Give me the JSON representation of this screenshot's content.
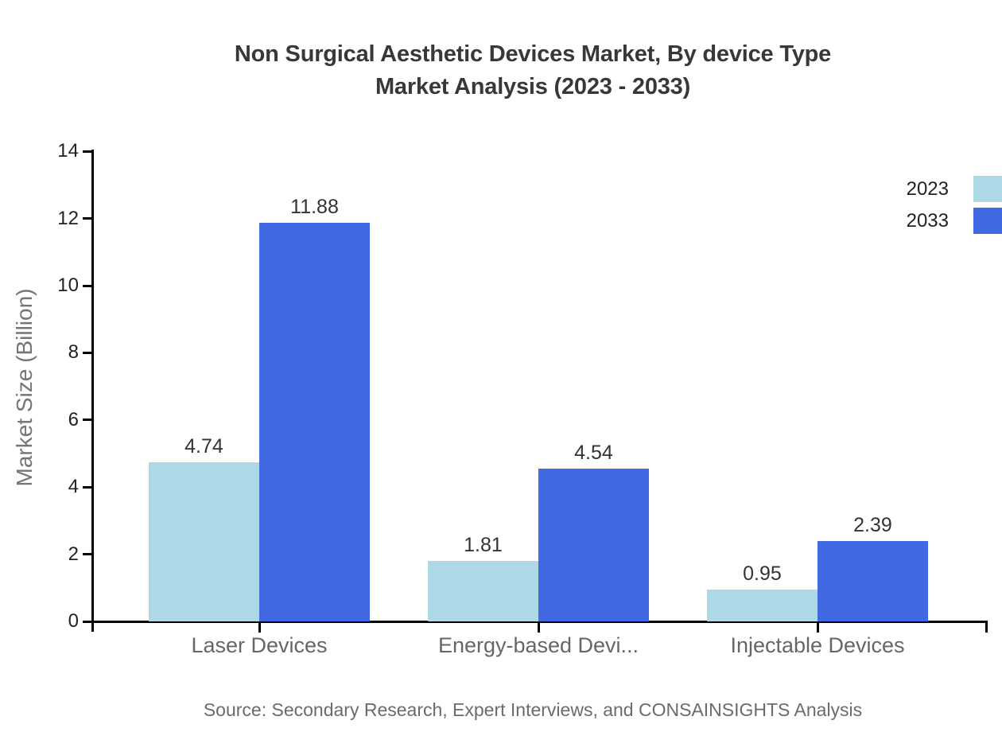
{
  "title": {
    "line1": "Non Surgical Aesthetic Devices Market, By device Type",
    "line2": "Market Analysis (2023 - 2033)"
  },
  "source": "Source: Secondary Research, Expert Interviews, and CONSAINSIGHTS Analysis",
  "chart_data": {
    "type": "bar",
    "title": "Non Surgical Aesthetic Devices Market, By device Type Market Analysis (2023 - 2033)",
    "categories": [
      "Laser Devices",
      "Energy-based Devi...",
      "Injectable Devices"
    ],
    "series": [
      {
        "name": "2023",
        "color": "#ADD8E6",
        "values": [
          4.74,
          1.81,
          0.95
        ]
      },
      {
        "name": "2033",
        "color": "#4169E1",
        "values": [
          11.88,
          4.54,
          2.39
        ]
      }
    ],
    "xlabel": "",
    "ylabel": "Market Size (Billion)",
    "ylim": [
      0,
      14
    ],
    "yticks": [
      0,
      2,
      4,
      6,
      8,
      10,
      12,
      14
    ],
    "grid": false,
    "legend_position": "top-right",
    "value_labels": true,
    "value_label_format": "2-decimals"
  },
  "colors": {
    "series_2023": "#ADD8E6",
    "series_2033": "#4169E1",
    "title_text": "#383838",
    "axis_line": "#000000",
    "tick_label": "#222222",
    "category_label": "#666666",
    "value_label": "#333333",
    "axis_title": "#757575",
    "source_text": "#6b6b6b",
    "background": "#ffffff"
  }
}
